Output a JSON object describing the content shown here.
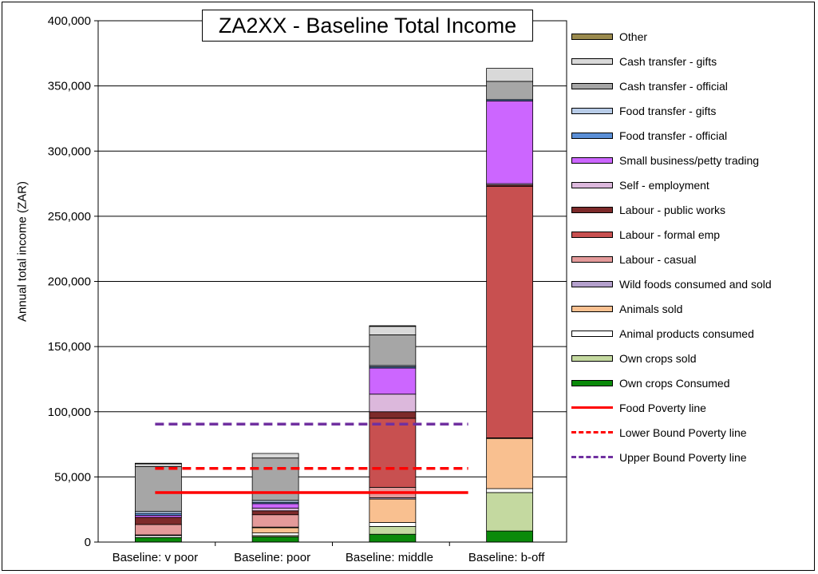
{
  "chart_data": {
    "type": "bar",
    "stacked": true,
    "title": "ZA2XX - Baseline Total Income",
    "xlabel": "",
    "ylabel": "Annual total income (ZAR)",
    "ylim": [
      0,
      400000
    ],
    "yticks": [
      0,
      50000,
      100000,
      150000,
      200000,
      250000,
      300000,
      350000,
      400000
    ],
    "ytick_labels": [
      "0",
      "50,000",
      "100,000",
      "150,000",
      "200,000",
      "250,000",
      "300,000",
      "350,000",
      "400,000"
    ],
    "grid": true,
    "legend_position": "right",
    "categories": [
      "Baseline: v poor",
      "Baseline: poor",
      "Baseline: middle",
      "Baseline: b-off"
    ],
    "series": [
      {
        "name": "Own crops Consumed",
        "color": "#0a8a0a",
        "values": [
          3500,
          4000,
          6000,
          8500
        ]
      },
      {
        "name": "Own crops sold",
        "color": "#c4d9a0",
        "values": [
          0,
          1000,
          6000,
          29500
        ]
      },
      {
        "name": "Animal products consumed",
        "color": "#ffffff",
        "values": [
          1500,
          2000,
          3000,
          3000
        ]
      },
      {
        "name": "Animals sold",
        "color": "#f9c090",
        "values": [
          0,
          4000,
          18000,
          38500
        ]
      },
      {
        "name": "Wild foods consumed and sold",
        "color": "#b4a0cc",
        "values": [
          500,
          500,
          1000,
          500
        ]
      },
      {
        "name": "Labour - casual",
        "color": "#e49a9a",
        "values": [
          8000,
          9500,
          8000,
          0
        ]
      },
      {
        "name": "Labour - formal emp",
        "color": "#c85050",
        "values": [
          0,
          0,
          53000,
          193000
        ]
      },
      {
        "name": "Labour - public works",
        "color": "#7d2a2a",
        "values": [
          5500,
          3000,
          5000,
          1000
        ]
      },
      {
        "name": "Self - employment",
        "color": "#dcb8dc",
        "values": [
          0,
          2000,
          13500,
          1000
        ]
      },
      {
        "name": "Small business/petty trading",
        "color": "#cc66ff",
        "values": [
          1500,
          3500,
          20000,
          63500
        ]
      },
      {
        "name": "Food transfer - official",
        "color": "#5b8fd6",
        "values": [
          1500,
          1000,
          1000,
          1000
        ]
      },
      {
        "name": "Food transfer - gifts",
        "color": "#b8cce8",
        "values": [
          1500,
          1500,
          1000,
          0
        ]
      },
      {
        "name": "Cash transfer - official",
        "color": "#a6a6a6",
        "values": [
          34500,
          32500,
          23500,
          14000
        ]
      },
      {
        "name": "Cash transfer - gifts",
        "color": "#d9d9d9",
        "values": [
          2000,
          3500,
          6500,
          10000
        ]
      },
      {
        "name": "Other",
        "color": "#9a8a4e",
        "values": [
          500,
          0,
          500,
          0
        ]
      }
    ],
    "reference_lines": [
      {
        "name": "Food Poverty line",
        "value": 38000,
        "color": "#ff0000",
        "style": "solid"
      },
      {
        "name": "Lower Bound Poverty line",
        "value": 56500,
        "color": "#ff0000",
        "style": "dashed"
      },
      {
        "name": "Upper Bound Poverty line",
        "value": 90500,
        "color": "#7030a0",
        "style": "dashed"
      }
    ]
  }
}
